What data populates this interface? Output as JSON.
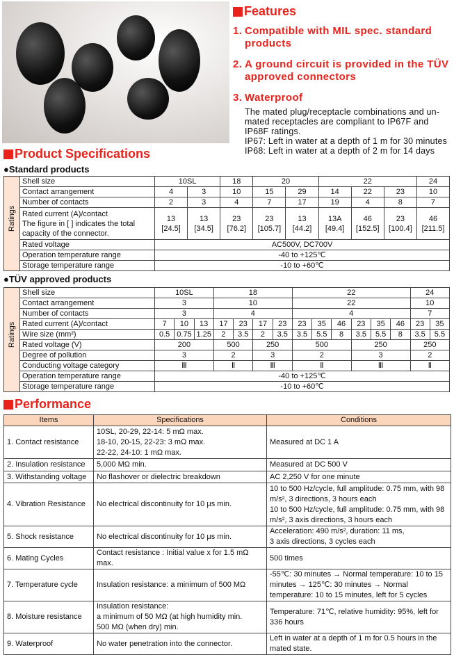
{
  "features": {
    "title": "Features",
    "items": [
      {
        "num": "1.",
        "title": "Compatible with MIL spec. standard products"
      },
      {
        "num": "2.",
        "title": "A ground circuit is provided in the TÜV approved connectors"
      },
      {
        "num": "3.",
        "title": "Waterproof",
        "body": "The mated plug/receptacle combinations and un-mated receptacles are compliant to IP67F and IP68F ratings.\nIP67: Left in water at a depth of 1 m for 30 minutes\nIP68: Left in water at a depth of 2 m for 14 days"
      }
    ]
  },
  "specs": {
    "title": "Product Specifications",
    "ratings_label": "Ratings",
    "standard": {
      "title": "●Standard products",
      "rows": [
        [
          {
            "t": "Shell size",
            "l": 1
          },
          {
            "t": "10SL",
            "c": 2
          },
          {
            "t": "18"
          },
          {
            "t": "20",
            "c": 2
          },
          {
            "t": "22",
            "c": 3
          },
          {
            "t": "24"
          }
        ],
        [
          {
            "t": "Contact arrangement",
            "l": 1
          },
          {
            "t": "4"
          },
          {
            "t": "3"
          },
          {
            "t": "10"
          },
          {
            "t": "15"
          },
          {
            "t": "29"
          },
          {
            "t": "14"
          },
          {
            "t": "22"
          },
          {
            "t": "23"
          },
          {
            "t": "10"
          }
        ],
        [
          {
            "t": "Number of contacts",
            "l": 1
          },
          {
            "t": "2"
          },
          {
            "t": "3"
          },
          {
            "t": "4"
          },
          {
            "t": "7"
          },
          {
            "t": "17"
          },
          {
            "t": "19"
          },
          {
            "t": "4"
          },
          {
            "t": "8"
          },
          {
            "t": "7"
          }
        ],
        [
          {
            "t": "Rated current (A)/contact\nThe figure in [ ] indicates the total capacity of the connector.",
            "l": 1
          },
          {
            "t": "13\n[24.5]"
          },
          {
            "t": "13\n[34.5]"
          },
          {
            "t": "23\n[76.2]"
          },
          {
            "t": "23\n[105.7]"
          },
          {
            "t": "13\n[44.2]"
          },
          {
            "t": "13A\n[49.4]"
          },
          {
            "t": "46\n[152.5]"
          },
          {
            "t": "23\n[100.4]"
          },
          {
            "t": "46\n[211.5]"
          }
        ],
        [
          {
            "t": "Rated voltage",
            "l": 1
          },
          {
            "t": "AC500V, DC700V",
            "c": 9
          }
        ],
        [
          {
            "t": "Operation temperature range",
            "l": 1
          },
          {
            "t": "-40 to +125℃",
            "c": 9
          }
        ],
        [
          {
            "t": "Storage temperature range",
            "l": 1
          },
          {
            "t": "-10 to +60℃",
            "c": 9
          }
        ]
      ]
    },
    "tuv": {
      "title": "●TÜV approved products",
      "rows": [
        [
          {
            "t": "Shell size",
            "l": 1
          },
          {
            "t": "10SL",
            "c": 3
          },
          {
            "t": "18",
            "c": 4
          },
          {
            "t": "22",
            "c": 6
          },
          {
            "t": "24",
            "c": 2
          }
        ],
        [
          {
            "t": "Contact arrangement",
            "l": 1
          },
          {
            "t": "3",
            "c": 3
          },
          {
            "t": "10",
            "c": 4
          },
          {
            "t": "22",
            "c": 6
          },
          {
            "t": "10",
            "c": 2
          }
        ],
        [
          {
            "t": "Number of contacts",
            "l": 1
          },
          {
            "t": "3",
            "c": 3
          },
          {
            "t": "4",
            "c": 4
          },
          {
            "t": "4",
            "c": 6
          },
          {
            "t": "7",
            "c": 2
          }
        ],
        [
          {
            "t": "Rated current (A)/contact",
            "l": 1
          },
          {
            "t": "7"
          },
          {
            "t": "10"
          },
          {
            "t": "13"
          },
          {
            "t": "17"
          },
          {
            "t": "23"
          },
          {
            "t": "17"
          },
          {
            "t": "23"
          },
          {
            "t": "23"
          },
          {
            "t": "35"
          },
          {
            "t": "46"
          },
          {
            "t": "23"
          },
          {
            "t": "35"
          },
          {
            "t": "46"
          },
          {
            "t": "23"
          },
          {
            "t": "35"
          }
        ],
        [
          {
            "t": "Wire size (mm²)",
            "l": 1
          },
          {
            "t": "0.5"
          },
          {
            "t": "0.75"
          },
          {
            "t": "1.25"
          },
          {
            "t": "2"
          },
          {
            "t": "3.5"
          },
          {
            "t": "2"
          },
          {
            "t": "3.5"
          },
          {
            "t": "3.5"
          },
          {
            "t": "5.5"
          },
          {
            "t": "8"
          },
          {
            "t": "3.5"
          },
          {
            "t": "5.5"
          },
          {
            "t": "8"
          },
          {
            "t": "3.5"
          },
          {
            "t": "5.5"
          }
        ],
        [
          {
            "t": "Rated voltage (V)",
            "l": 1
          },
          {
            "t": "200",
            "c": 3
          },
          {
            "t": "500",
            "c": 2
          },
          {
            "t": "250",
            "c": 2
          },
          {
            "t": "500",
            "c": 3
          },
          {
            "t": "250",
            "c": 3
          },
          {
            "t": "250",
            "c": 2
          }
        ],
        [
          {
            "t": "Degree of pollution",
            "l": 1
          },
          {
            "t": "3",
            "c": 3
          },
          {
            "t": "2",
            "c": 2
          },
          {
            "t": "3",
            "c": 2
          },
          {
            "t": "2",
            "c": 3
          },
          {
            "t": "3",
            "c": 3
          },
          {
            "t": "2",
            "c": 2
          }
        ],
        [
          {
            "t": "Conducting voltage category",
            "l": 1
          },
          {
            "t": "Ⅲ",
            "c": 3
          },
          {
            "t": "Ⅱ",
            "c": 2
          },
          {
            "t": "Ⅲ",
            "c": 2
          },
          {
            "t": "Ⅱ",
            "c": 3
          },
          {
            "t": "Ⅲ",
            "c": 3
          },
          {
            "t": "Ⅱ",
            "c": 2
          }
        ],
        [
          {
            "t": "Operation temperature range",
            "l": 1
          },
          {
            "t": "-40 to +125℃",
            "c": 15
          }
        ],
        [
          {
            "t": "Storage temperature range",
            "l": 1
          },
          {
            "t": "-10 to +60℃",
            "c": 15
          }
        ]
      ]
    }
  },
  "performance": {
    "title": "Performance",
    "headers": [
      "Items",
      "Specifications",
      "Conditions"
    ],
    "rows": [
      [
        "1. Contact resistance",
        "10SL, 20-29, 22-14: 5 mΩ max.\n18-10, 20-15, 22-23: 3 mΩ max.\n22-22, 24-10: 1 mΩ max.",
        "Measured at DC 1 A"
      ],
      [
        "2. Insulation resistance",
        "5,000 MΩ min.",
        "Measured at DC 500 V"
      ],
      [
        "3. Withstanding voltage",
        "No flashover or dielectric breakdown",
        "AC 2,250 V for one minute"
      ],
      [
        "4. Vibration Resistance",
        "No electrical discontinuity for 10 μs min.",
        "10 to 500 Hz/cycle, full amplitude: 0.75 mm, with 98 m/s², 3 directions, 3 hours each\n10 to 500 Hz/cycle, full amplitude: 0.75 mm, with 98 m/s², 3 axis directions, 3 hours each"
      ],
      [
        "5. Shock resistance",
        "No electrical discontinuity for 10 μs min.",
        "Acceleration: 490 m/s², duration: 11 ms,\n3 axis directions, 3 cycles each"
      ],
      [
        "6. Mating Cycles",
        "Contact resistance : Initial value x for 1.5 mΩ max.",
        "500 times"
      ],
      [
        "7. Temperature cycle",
        "Insulation resistance: a minimum of 500 MΩ",
        "-55℃: 30 minutes → Normal temperature: 10 to 15 minutes → 125℃: 30 minutes → Normal temperature:  10 to 15 minutes, left for 5 cycles"
      ],
      [
        "8. Moisture resistance",
        "Insulation resistance:\na minimum of 50 MΩ (at high humidity min.\n                      500 MΩ (when dry) min.",
        "Temperature: 71℃, relative humidity: 95%, left for 336 hours"
      ],
      [
        "9. Waterproof",
        "No water penetration into the connector.",
        "Left in water at a depth of 1 m for 0.5 hours in the mated state."
      ]
    ]
  },
  "colors": {
    "accent": "#e8231c",
    "header_bg": "#fbd6bd",
    "ratings_bg": "#fde4d4"
  }
}
